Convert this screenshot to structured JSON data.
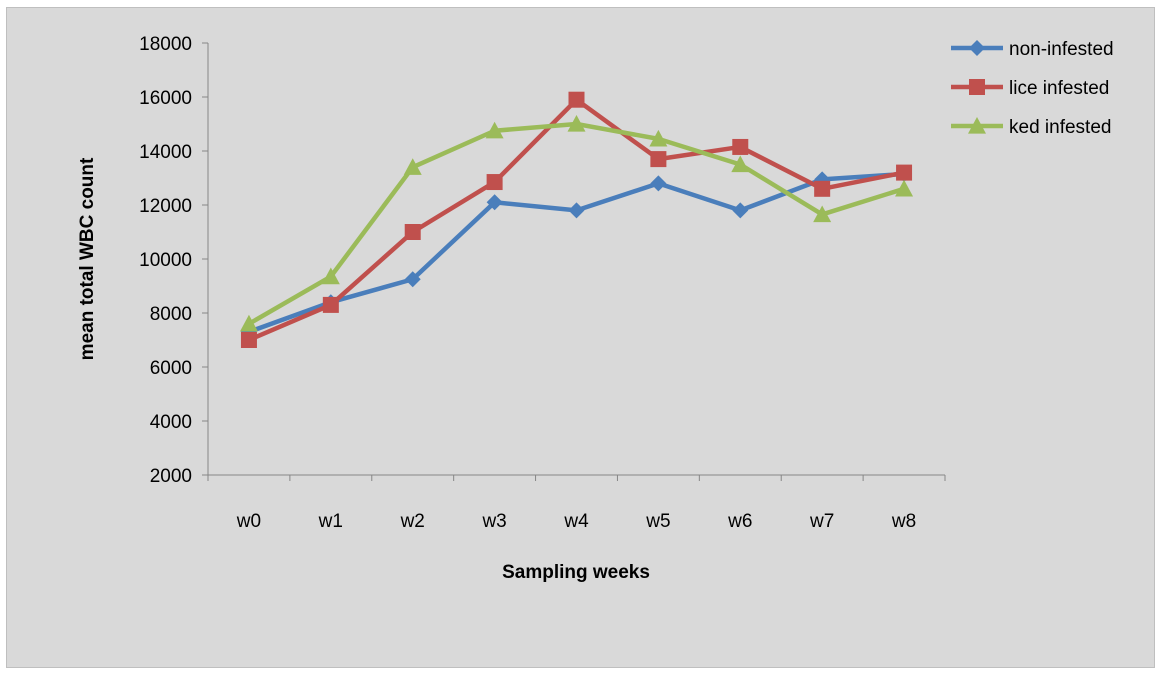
{
  "chart_data": {
    "type": "line",
    "title": "",
    "xlabel": "Sampling weeks",
    "ylabel": "mean total WBC count",
    "categories": [
      "w0",
      "w1",
      "w2",
      "w3",
      "w4",
      "w5",
      "w6",
      "w7",
      "w8"
    ],
    "ylim": [
      2000,
      18000
    ],
    "yticks": [
      2000,
      4000,
      6000,
      8000,
      10000,
      12000,
      14000,
      16000,
      18000
    ],
    "grid": false,
    "legend_position": "top-right",
    "series": [
      {
        "name": "non-infested",
        "color": "#4a7ebb",
        "marker": "diamond",
        "values": [
          7300,
          8400,
          9250,
          12100,
          11800,
          12800,
          11800,
          12950,
          13150
        ]
      },
      {
        "name": "lice infested",
        "color": "#c0504d",
        "marker": "square",
        "values": [
          7000,
          8300,
          11000,
          12850,
          15900,
          13700,
          14150,
          12600,
          13200
        ]
      },
      {
        "name": "ked infested",
        "color": "#9bbb59",
        "marker": "triangle",
        "values": [
          7600,
          9350,
          13400,
          14750,
          15000,
          14450,
          13500,
          11650,
          12600
        ]
      }
    ]
  }
}
